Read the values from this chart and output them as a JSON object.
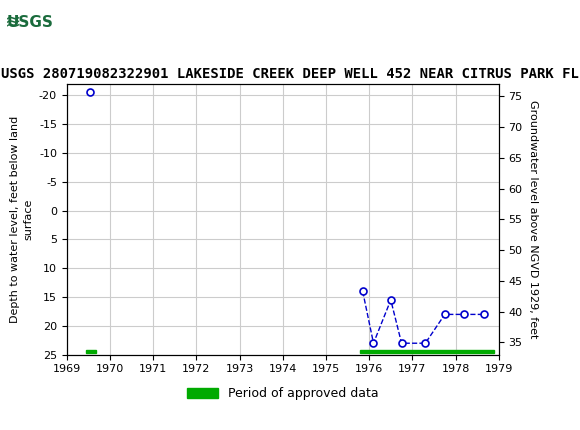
{
  "title": "USGS 280719082322901 LAKESIDE CREEK DEEP WELL 452 NEAR CITRUS PARK FL",
  "ylabel_left": "Depth to water level, feet below land\nsurface",
  "ylabel_right": "Groundwater level above NGVD 1929, feet",
  "ylim_left": [
    25,
    -22
  ],
  "ylim_right": [
    33,
    77
  ],
  "xlim": [
    1969,
    1979
  ],
  "xticks": [
    1969,
    1970,
    1971,
    1972,
    1973,
    1974,
    1975,
    1976,
    1977,
    1978,
    1979
  ],
  "yticks_left": [
    -20,
    -15,
    -10,
    -5,
    0,
    5,
    10,
    15,
    20,
    25
  ],
  "yticks_right": [
    35,
    40,
    45,
    50,
    55,
    60,
    65,
    70,
    75
  ],
  "data_x": [
    1969.55,
    1975.85,
    1976.1,
    1976.5,
    1976.75,
    1977.3,
    1977.75,
    1978.2,
    1978.65
  ],
  "data_y": [
    -20.5,
    14,
    23,
    15.5,
    23,
    23,
    18,
    18,
    18
  ],
  "line_color": "#0000cc",
  "marker_facecolor": "white",
  "marker_edgecolor": "#0000cc",
  "marker_size": 5,
  "grid_color": "#cccccc",
  "background_color": "#ffffff",
  "header_color": "#1a6b3c",
  "approved_bar_color": "#00aa00",
  "approved_bars": [
    {
      "x_start": 1969.45,
      "x_end": 1969.67,
      "y": 24.5
    },
    {
      "x_start": 1975.78,
      "x_end": 1978.88,
      "y": 24.5
    }
  ],
  "approved_bar_height": 0.55,
  "legend_label": "Period of approved data",
  "title_fontsize": 10,
  "axis_fontsize": 8,
  "tick_fontsize": 8
}
